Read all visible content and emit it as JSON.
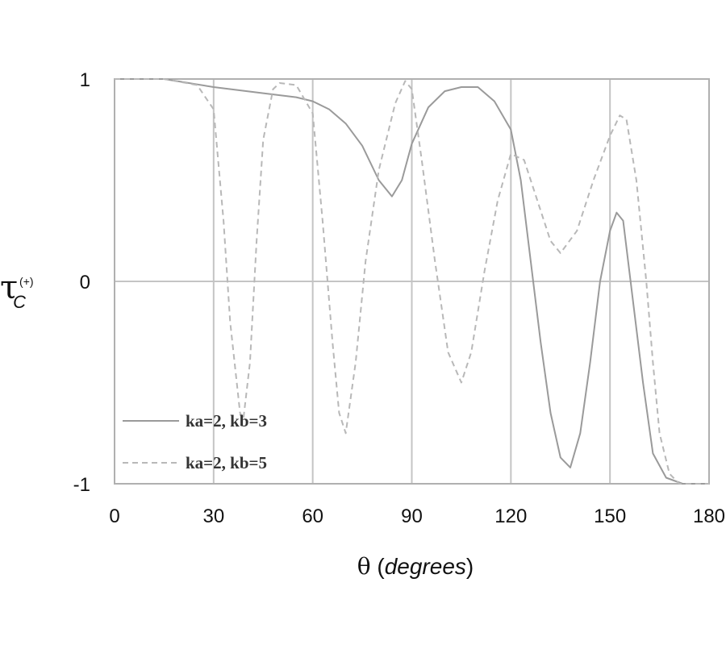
{
  "chart_data": {
    "type": "line",
    "xlabel": {
      "symbol": "θ",
      "open": " (",
      "unit": "degrees",
      "close": ")"
    },
    "ylabel": {
      "symbol": "τ",
      "sub": "C",
      "sup": "(+)"
    },
    "xlim": [
      0,
      180
    ],
    "ylim": [
      -1,
      1
    ],
    "xticks": [
      0,
      30,
      60,
      90,
      120,
      150,
      180
    ],
    "yticks": [
      -1,
      0,
      1
    ],
    "x_tick_labels": [
      "0",
      "30",
      "60",
      "90",
      "120",
      "150",
      "180"
    ],
    "y_tick_labels": [
      "-1",
      "0",
      "1"
    ],
    "grid": true,
    "legend_position": "bottom-left",
    "series": [
      {
        "name": "ka=2, kb=3",
        "style": "solid",
        "color": "#9a9a9a",
        "points": [
          [
            0,
            1
          ],
          [
            15,
            1
          ],
          [
            30,
            0.96
          ],
          [
            45,
            0.93
          ],
          [
            55,
            0.91
          ],
          [
            60,
            0.89
          ],
          [
            65,
            0.85
          ],
          [
            70,
            0.78
          ],
          [
            75,
            0.67
          ],
          [
            80,
            0.5
          ],
          [
            84,
            0.42
          ],
          [
            87,
            0.5
          ],
          [
            90,
            0.68
          ],
          [
            95,
            0.86
          ],
          [
            100,
            0.94
          ],
          [
            105,
            0.96
          ],
          [
            110,
            0.96
          ],
          [
            115,
            0.89
          ],
          [
            120,
            0.75
          ],
          [
            123,
            0.5
          ],
          [
            126,
            0.1
          ],
          [
            129,
            -0.3
          ],
          [
            132,
            -0.65
          ],
          [
            135,
            -0.87
          ],
          [
            138,
            -0.92
          ],
          [
            141,
            -0.75
          ],
          [
            144,
            -0.4
          ],
          [
            147,
            0
          ],
          [
            150,
            0.25
          ],
          [
            152,
            0.34
          ],
          [
            154,
            0.3
          ],
          [
            157,
            -0.1
          ],
          [
            160,
            -0.5
          ],
          [
            163,
            -0.85
          ],
          [
            167,
            -0.97
          ],
          [
            172,
            -1
          ],
          [
            180,
            -1
          ]
        ]
      },
      {
        "name": "ka=2, kb=5",
        "style": "dashed",
        "color": "#b8b8b8",
        "points": [
          [
            0,
            1
          ],
          [
            15,
            1
          ],
          [
            25,
            0.97
          ],
          [
            30,
            0.85
          ],
          [
            33,
            0.3
          ],
          [
            35,
            -0.2
          ],
          [
            38,
            -0.65
          ],
          [
            39,
            -0.68
          ],
          [
            41,
            -0.4
          ],
          [
            43,
            0.2
          ],
          [
            45,
            0.7
          ],
          [
            48,
            0.95
          ],
          [
            50,
            0.98
          ],
          [
            55,
            0.97
          ],
          [
            60,
            0.83
          ],
          [
            63,
            0.3
          ],
          [
            66,
            -0.3
          ],
          [
            68,
            -0.65
          ],
          [
            70,
            -0.75
          ],
          [
            73,
            -0.4
          ],
          [
            76,
            0.1
          ],
          [
            80,
            0.55
          ],
          [
            85,
            0.88
          ],
          [
            88,
            0.99
          ],
          [
            90,
            0.95
          ],
          [
            93,
            0.6
          ],
          [
            97,
            0.1
          ],
          [
            101,
            -0.35
          ],
          [
            105,
            -0.5
          ],
          [
            108,
            -0.35
          ],
          [
            112,
            0.05
          ],
          [
            116,
            0.4
          ],
          [
            120,
            0.63
          ],
          [
            124,
            0.6
          ],
          [
            128,
            0.4
          ],
          [
            132,
            0.2
          ],
          [
            135,
            0.14
          ],
          [
            140,
            0.25
          ],
          [
            145,
            0.5
          ],
          [
            150,
            0.72
          ],
          [
            153,
            0.82
          ],
          [
            155,
            0.8
          ],
          [
            158,
            0.5
          ],
          [
            161,
            0
          ],
          [
            163,
            -0.4
          ],
          [
            165,
            -0.75
          ],
          [
            168,
            -0.95
          ],
          [
            171,
            -1
          ],
          [
            180,
            -1
          ]
        ]
      }
    ]
  }
}
